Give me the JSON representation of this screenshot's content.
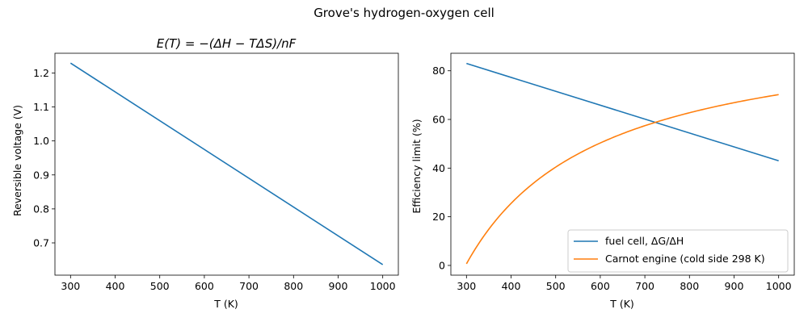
{
  "figure": {
    "suptitle": "Grove's hydrogen-oxygen cell"
  },
  "colors": {
    "blue": "#1f77b4",
    "orange": "#ff7f0e"
  },
  "chart_data": [
    {
      "type": "line",
      "title": "E(T) = −(ΔH − TΔS)/nF",
      "xlabel": "T (K)",
      "ylabel": "Reversible voltage (V)",
      "xlim": [
        265,
        1035
      ],
      "ylim": [
        0.605,
        1.258
      ],
      "xticks": [
        300,
        400,
        500,
        600,
        700,
        800,
        900,
        1000
      ],
      "yticks": [
        0.7,
        0.8,
        0.9,
        1.0,
        1.1,
        1.2
      ],
      "ytick_labels": [
        "0.7",
        "0.8",
        "0.9",
        "1.0",
        "1.1",
        "1.2"
      ],
      "grid": false,
      "series": [
        {
          "color": "#1f77b4",
          "x": [
            300,
            1000
          ],
          "y": [
            1.229,
            0.636
          ]
        }
      ]
    },
    {
      "type": "line",
      "title": "",
      "xlabel": "T (K)",
      "ylabel": "Efficiency limit (%)",
      "xlim": [
        265,
        1035
      ],
      "ylim": [
        -4,
        87.2
      ],
      "xticks": [
        300,
        400,
        500,
        600,
        700,
        800,
        900,
        1000
      ],
      "yticks": [
        0,
        20,
        40,
        60,
        80
      ],
      "ytick_labels": [
        "0",
        "20",
        "40",
        "60",
        "80"
      ],
      "grid": false,
      "legend": "lower-right",
      "series": [
        {
          "name": "fuel cell, ΔG/ΔH",
          "color": "#1f77b4",
          "x": [
            300,
            1000
          ],
          "y": [
            83.0,
            43.0
          ]
        },
        {
          "name": "Carnot engine (cold side 298 K)",
          "color": "#ff7f0e",
          "x": [
            300,
            1000
          ],
          "y": [
            0.67,
            70.2
          ],
          "carnot_cold_side_K": 298
        }
      ]
    }
  ]
}
